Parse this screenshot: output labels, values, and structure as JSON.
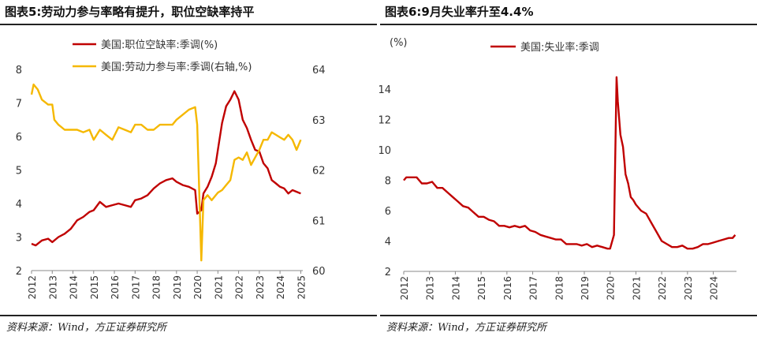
{
  "charts": [
    {
      "title": "图表5:劳动力参与率略有提升，职位空缺率持平",
      "source": "资料来源：Wind，方正证券研究所"
    },
    {
      "title": "图表6:9月失业率升至4.4%",
      "source": "资料来源：Wind，方正证券研究所"
    }
  ],
  "chart_data": [
    {
      "type": "line",
      "title": "图表5:劳动力参与率略有提升，职位空缺率持平",
      "x_ticks": [
        "2012",
        "2013",
        "2014",
        "2015",
        "2016",
        "2017",
        "2018",
        "2019",
        "2020",
        "2021",
        "2022",
        "2023",
        "2024",
        "2025"
      ],
      "xlim": [
        2012.0,
        2025.1
      ],
      "ylim": [
        2,
        8
      ],
      "y_ticks": [
        2,
        3,
        4,
        5,
        6,
        7,
        8
      ],
      "y2lim": [
        60,
        64
      ],
      "y2_ticks": [
        60,
        61,
        62,
        63,
        64
      ],
      "grid": false,
      "legend": "top-center",
      "series": [
        {
          "name": "美国:职位空缺率:季调(%)",
          "axis": "left",
          "color": "#c00000",
          "x": [
            2012.0,
            2012.2,
            2012.5,
            2012.8,
            2013.0,
            2013.3,
            2013.6,
            2013.9,
            2014.2,
            2014.5,
            2014.8,
            2015.0,
            2015.3,
            2015.6,
            2015.9,
            2016.2,
            2016.5,
            2016.8,
            2017.0,
            2017.3,
            2017.6,
            2017.9,
            2018.2,
            2018.5,
            2018.8,
            2019.0,
            2019.3,
            2019.6,
            2019.9,
            2020.0,
            2020.2,
            2020.3,
            2020.5,
            2020.7,
            2020.9,
            2021.0,
            2021.2,
            2021.4,
            2021.6,
            2021.8,
            2022.0,
            2022.2,
            2022.4,
            2022.6,
            2022.8,
            2023.0,
            2023.2,
            2023.4,
            2023.6,
            2023.8,
            2024.0,
            2024.2,
            2024.4,
            2024.6,
            2024.8,
            2025.0
          ],
          "values": [
            2.8,
            2.75,
            2.9,
            2.95,
            2.85,
            3.0,
            3.1,
            3.25,
            3.5,
            3.6,
            3.75,
            3.8,
            4.05,
            3.9,
            3.95,
            4.0,
            3.95,
            3.9,
            4.1,
            4.15,
            4.25,
            4.45,
            4.6,
            4.7,
            4.75,
            4.65,
            4.55,
            4.5,
            4.4,
            3.7,
            3.8,
            4.3,
            4.5,
            4.8,
            5.2,
            5.6,
            6.4,
            6.9,
            7.1,
            7.35,
            7.1,
            6.5,
            6.25,
            5.9,
            5.6,
            5.55,
            5.2,
            5.05,
            4.7,
            4.6,
            4.5,
            4.45,
            4.3,
            4.4,
            4.35,
            4.3
          ]
        },
        {
          "name": "美国:劳动力参与率:季调(右轴,%)",
          "axis": "right",
          "color": "#f5b800",
          "x": [
            2012.0,
            2012.1,
            2012.3,
            2012.5,
            2012.8,
            2013.0,
            2013.1,
            2013.3,
            2013.6,
            2013.9,
            2014.2,
            2014.5,
            2014.8,
            2015.0,
            2015.3,
            2015.6,
            2015.9,
            2016.2,
            2016.5,
            2016.8,
            2017.0,
            2017.3,
            2017.6,
            2017.9,
            2018.2,
            2018.5,
            2018.8,
            2019.0,
            2019.3,
            2019.6,
            2019.9,
            2020.0,
            2020.2,
            2020.3,
            2020.5,
            2020.7,
            2020.9,
            2021.0,
            2021.2,
            2021.4,
            2021.6,
            2021.8,
            2022.0,
            2022.2,
            2022.4,
            2022.6,
            2022.8,
            2023.0,
            2023.2,
            2023.4,
            2023.6,
            2023.8,
            2024.0,
            2024.2,
            2024.4,
            2024.6,
            2024.8,
            2025.0
          ],
          "values": [
            63.5,
            63.7,
            63.6,
            63.4,
            63.3,
            63.3,
            63.0,
            62.9,
            62.8,
            62.8,
            62.8,
            62.75,
            62.8,
            62.6,
            62.8,
            62.7,
            62.6,
            62.85,
            62.8,
            62.75,
            62.9,
            62.9,
            62.8,
            62.8,
            62.9,
            62.9,
            62.9,
            63.0,
            63.1,
            63.2,
            63.25,
            62.9,
            60.2,
            61.4,
            61.5,
            61.4,
            61.5,
            61.55,
            61.6,
            61.7,
            61.8,
            62.2,
            62.25,
            62.2,
            62.35,
            62.1,
            62.25,
            62.4,
            62.6,
            62.6,
            62.75,
            62.7,
            62.65,
            62.6,
            62.7,
            62.6,
            62.4,
            62.6
          ]
        }
      ]
    },
    {
      "type": "line",
      "title": "图表6:9月失业率升至4.4%",
      "unit_label": "(%)",
      "x_ticks": [
        "2012",
        "2013",
        "2014",
        "2015",
        "2016",
        "2017",
        "2018",
        "2019",
        "2020",
        "2021",
        "2022",
        "2023",
        "2024"
      ],
      "xlim": [
        2012.0,
        2024.9
      ],
      "ylim": [
        2,
        15
      ],
      "y_ticks": [
        2,
        4,
        6,
        8,
        10,
        12,
        14
      ],
      "grid": false,
      "legend": "top-left",
      "series": [
        {
          "name": "美国:失业率:季调",
          "color": "#c00000",
          "x": [
            2012.0,
            2012.1,
            2012.3,
            2012.5,
            2012.7,
            2012.9,
            2013.1,
            2013.3,
            2013.5,
            2013.7,
            2013.9,
            2014.1,
            2014.3,
            2014.5,
            2014.7,
            2014.9,
            2015.1,
            2015.3,
            2015.5,
            2015.7,
            2015.9,
            2016.1,
            2016.3,
            2016.5,
            2016.7,
            2016.9,
            2017.1,
            2017.3,
            2017.5,
            2017.7,
            2017.9,
            2018.1,
            2018.3,
            2018.5,
            2018.7,
            2018.9,
            2019.1,
            2019.3,
            2019.5,
            2019.7,
            2019.9,
            2020.0,
            2020.15,
            2020.25,
            2020.3,
            2020.4,
            2020.5,
            2020.6,
            2020.7,
            2020.8,
            2020.9,
            2021.0,
            2021.2,
            2021.4,
            2021.6,
            2021.8,
            2022.0,
            2022.2,
            2022.4,
            2022.6,
            2022.8,
            2023.0,
            2023.2,
            2023.4,
            2023.6,
            2023.8,
            2024.0,
            2024.2,
            2024.4,
            2024.6,
            2024.75,
            2024.85
          ],
          "values": [
            8.0,
            8.2,
            8.2,
            8.2,
            7.8,
            7.8,
            7.9,
            7.5,
            7.5,
            7.2,
            6.9,
            6.6,
            6.3,
            6.2,
            5.9,
            5.6,
            5.6,
            5.4,
            5.3,
            5.0,
            5.0,
            4.9,
            5.0,
            4.9,
            5.0,
            4.7,
            4.6,
            4.4,
            4.3,
            4.2,
            4.1,
            4.1,
            3.8,
            3.8,
            3.8,
            3.7,
            3.8,
            3.6,
            3.7,
            3.6,
            3.5,
            3.5,
            4.4,
            14.8,
            13.2,
            11.0,
            10.2,
            8.4,
            7.8,
            6.9,
            6.7,
            6.4,
            6.0,
            5.8,
            5.2,
            4.6,
            4.0,
            3.8,
            3.6,
            3.6,
            3.7,
            3.5,
            3.5,
            3.6,
            3.8,
            3.8,
            3.9,
            4.0,
            4.1,
            4.2,
            4.2,
            4.4
          ]
        }
      ]
    }
  ]
}
